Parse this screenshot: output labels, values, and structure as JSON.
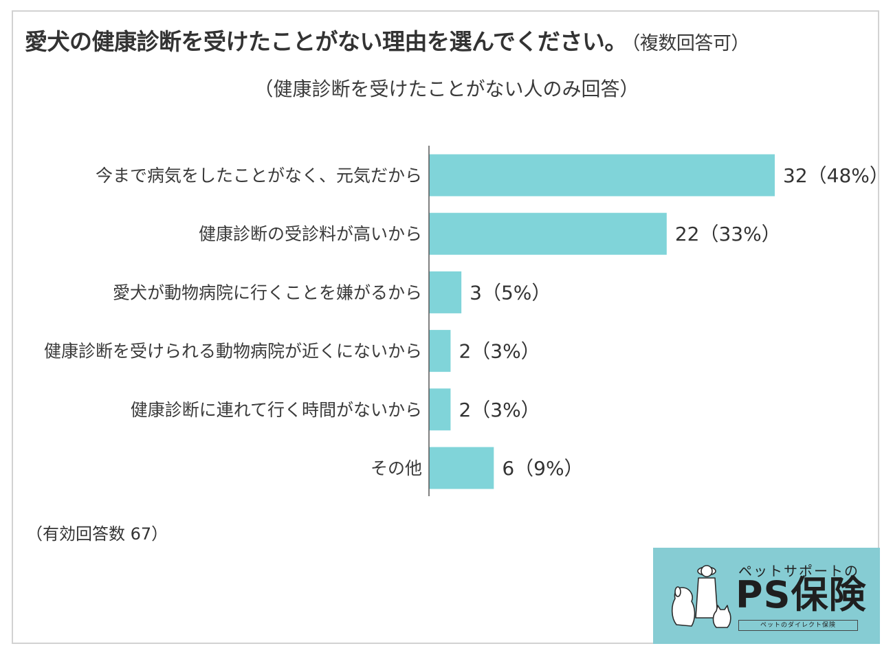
{
  "title": {
    "main": "愛犬の健康診断を受けたことがない理由を選んでください。",
    "note": "（複数回答可）",
    "subtitle": "（健康診断を受けたことがない人のみ回答）"
  },
  "chart_data": {
    "type": "bar",
    "orientation": "horizontal",
    "categories": [
      "今まで病気をしたことがなく、元気だから",
      "健康診断の受診料が高いから",
      "愛犬が動物病院に行くことを嫌がるから",
      "健康診断を受けられる動物病院が近くにないから",
      "健康診断に連れて行く時間がないから",
      "その他"
    ],
    "values": [
      32,
      22,
      3,
      2,
      2,
      6
    ],
    "percents": [
      "48%",
      "33%",
      "5%",
      "3%",
      "3%",
      "9%"
    ],
    "data_labels": [
      "32（48%）",
      "22（33%）",
      "3（5%）",
      "2（3%）",
      "2（3%）",
      "6（9%）"
    ],
    "bar_color": "#80d4d9",
    "axis_color": "#555555",
    "xlim": [
      0,
      32
    ],
    "grid": false,
    "legend": "none"
  },
  "footnote": "（有効回答数 67）",
  "logo": {
    "top_text": "ペットサポートの",
    "main_text": "PS保険",
    "sub_text": "ペットのダイレクト保険",
    "background": "#86ccd3"
  }
}
